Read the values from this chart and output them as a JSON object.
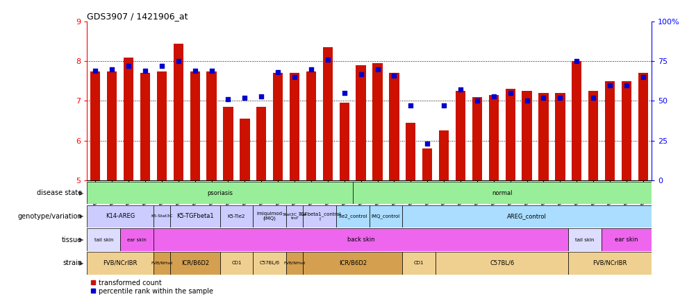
{
  "title": "GDS3907 / 1421906_at",
  "samples": [
    "GSM684694",
    "GSM684695",
    "GSM684696",
    "GSM684688",
    "GSM684689",
    "GSM684690",
    "GSM684700",
    "GSM684701",
    "GSM684704",
    "GSM684705",
    "GSM684706",
    "GSM684676",
    "GSM684677",
    "GSM684678",
    "GSM684682",
    "GSM684683",
    "GSM684684",
    "GSM684702",
    "GSM684703",
    "GSM684707",
    "GSM684708",
    "GSM684709",
    "GSM684679",
    "GSM684680",
    "GSM684681",
    "GSM684685",
    "GSM684686",
    "GSM684687",
    "GSM684697",
    "GSM684698",
    "GSM684699",
    "GSM684691",
    "GSM684692",
    "GSM684693"
  ],
  "bar_values": [
    7.75,
    7.75,
    8.1,
    7.7,
    7.75,
    8.45,
    7.75,
    7.75,
    6.85,
    6.55,
    6.85,
    7.7,
    7.7,
    7.75,
    8.35,
    6.95,
    7.9,
    7.95,
    7.7,
    6.45,
    5.8,
    6.25,
    7.25,
    7.1,
    7.15,
    7.3,
    7.25,
    7.2,
    7.2,
    8.0,
    7.25,
    7.5,
    7.5,
    7.7
  ],
  "percentile_values": [
    69,
    70,
    72,
    69,
    72,
    75,
    69,
    69,
    51,
    52,
    53,
    68,
    65,
    70,
    76,
    55,
    67,
    70,
    66,
    47,
    23,
    47,
    57,
    50,
    53,
    55,
    50,
    52,
    52,
    75,
    52,
    60,
    60,
    65
  ],
  "ylim_left": [
    5,
    9
  ],
  "ylim_right": [
    0,
    100
  ],
  "yticks_left": [
    5,
    6,
    7,
    8,
    9
  ],
  "yticks_right": [
    0,
    25,
    50,
    75,
    100
  ],
  "bar_color": "#cc1100",
  "dot_color": "#0000cc",
  "disease_groups": [
    {
      "label": "psoriasis",
      "start": 0,
      "end": 16,
      "color": "#99ee99"
    },
    {
      "label": "normal",
      "start": 16,
      "end": 34,
      "color": "#99ee99"
    }
  ],
  "genotype_groups": [
    {
      "label": "K14-AREG",
      "start": 0,
      "end": 4,
      "color": "#ccccff"
    },
    {
      "label": "K5-Stat3C",
      "start": 4,
      "end": 5,
      "color": "#ccccff"
    },
    {
      "label": "K5-TGFbeta1",
      "start": 5,
      "end": 8,
      "color": "#ccccff"
    },
    {
      "label": "K5-Tie2",
      "start": 8,
      "end": 10,
      "color": "#ccccff"
    },
    {
      "label": "imiquimod\n(IMQ)",
      "start": 10,
      "end": 12,
      "color": "#ccccff"
    },
    {
      "label": "Stat3C_con\ntrol",
      "start": 12,
      "end": 13,
      "color": "#ccccff"
    },
    {
      "label": "TGFbeta1_control\nl",
      "start": 13,
      "end": 15,
      "color": "#ccccff"
    },
    {
      "label": "Tie2_control",
      "start": 15,
      "end": 17,
      "color": "#aaddff"
    },
    {
      "label": "IMQ_control",
      "start": 17,
      "end": 19,
      "color": "#aaddff"
    },
    {
      "label": "AREG_control",
      "start": 19,
      "end": 34,
      "color": "#aaddff"
    }
  ],
  "tissue_groups": [
    {
      "label": "tail skin",
      "start": 0,
      "end": 2,
      "color": "#ddddff"
    },
    {
      "label": "ear skin",
      "start": 2,
      "end": 4,
      "color": "#ee66ee"
    },
    {
      "label": "back skin",
      "start": 4,
      "end": 29,
      "color": "#ee66ee"
    },
    {
      "label": "tail skin",
      "start": 29,
      "end": 31,
      "color": "#ddddff"
    },
    {
      "label": "ear skin",
      "start": 31,
      "end": 34,
      "color": "#ee66ee"
    }
  ],
  "strain_groups": [
    {
      "label": "FVB/NCrIBR",
      "start": 0,
      "end": 4,
      "color": "#f0d090"
    },
    {
      "label": "FVB/NHsd",
      "start": 4,
      "end": 5,
      "color": "#d4a050"
    },
    {
      "label": "ICR/B6D2",
      "start": 5,
      "end": 8,
      "color": "#d4a050"
    },
    {
      "label": "CD1",
      "start": 8,
      "end": 10,
      "color": "#f0d090"
    },
    {
      "label": "C57BL/6",
      "start": 10,
      "end": 12,
      "color": "#f0d090"
    },
    {
      "label": "FVB/NHsd",
      "start": 12,
      "end": 13,
      "color": "#d4a050"
    },
    {
      "label": "ICR/B6D2",
      "start": 13,
      "end": 19,
      "color": "#d4a050"
    },
    {
      "label": "CD1",
      "start": 19,
      "end": 21,
      "color": "#f0d090"
    },
    {
      "label": "C57BL/6",
      "start": 21,
      "end": 29,
      "color": "#f0d090"
    },
    {
      "label": "FVB/NCrIBR",
      "start": 29,
      "end": 34,
      "color": "#f0d090"
    }
  ],
  "row_labels": [
    "disease state",
    "genotype/variation",
    "tissue",
    "strain"
  ],
  "n_samples": 34
}
